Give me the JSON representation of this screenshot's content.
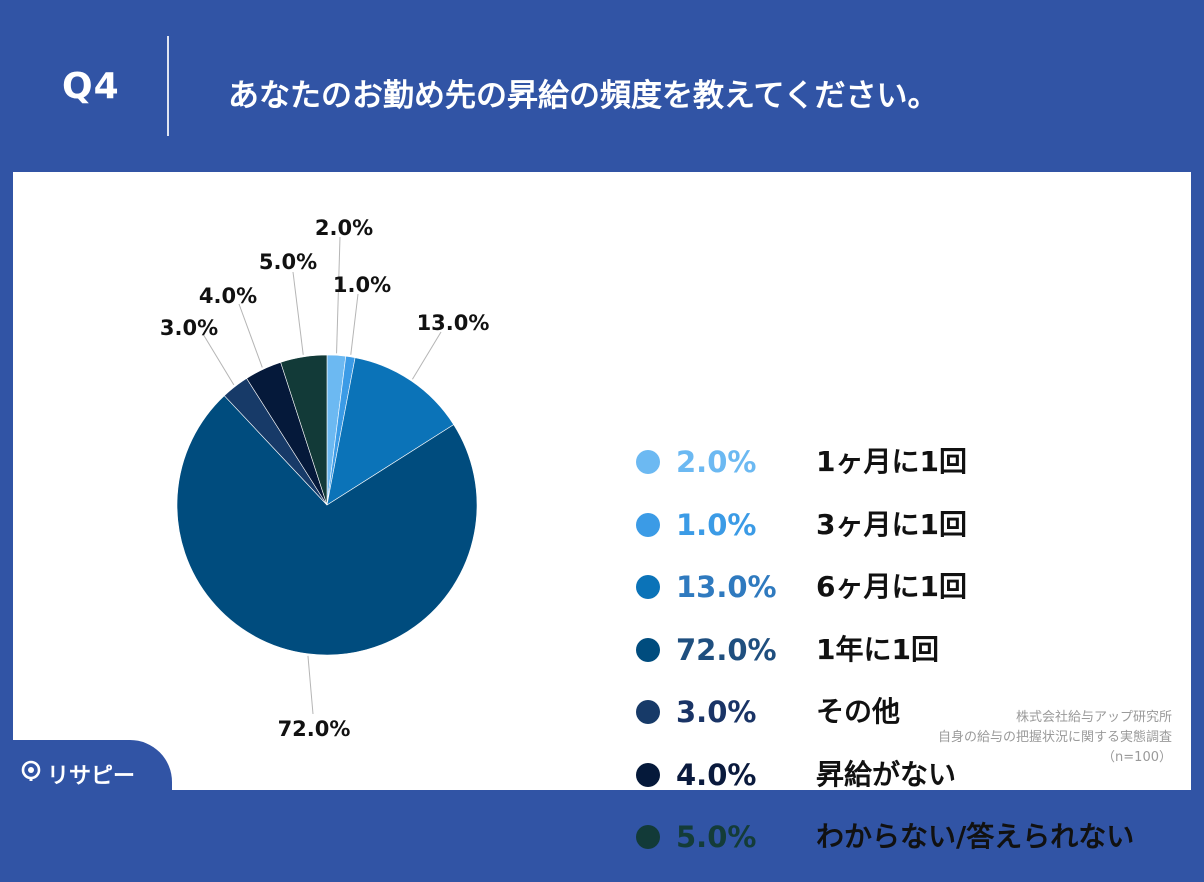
{
  "header": {
    "question_label": "Q4",
    "question_text": "あなたのお勤め先の昇給の頻度を教えてください。"
  },
  "chart_data": {
    "type": "pie",
    "title": "",
    "categories": [
      "1ヶ月に1回",
      "3ヶ月に1回",
      "6ヶ月に1回",
      "1年に1回",
      "その他",
      "昇給がない",
      "わからない/答えられない"
    ],
    "values": [
      2.0,
      1.0,
      13.0,
      72.0,
      3.0,
      4.0,
      5.0
    ],
    "labels": [
      "2.0%",
      "1.0%",
      "13.0%",
      "72.0%",
      "3.0%",
      "4.0%",
      "5.0%"
    ],
    "colors": [
      "#6cb9f2",
      "#3b9be6",
      "#0b73b8",
      "#004c7e",
      "#173a68",
      "#05193a",
      "#123a38"
    ],
    "start": "12 o'clock",
    "direction": "clockwise",
    "legend": "right"
  },
  "legend_text_colors": [
    "#6cb9f2",
    "#3b9be6",
    "#2f7abf",
    "#1f4f7f",
    "#1a3466",
    "#0a1a3d",
    "#143c38"
  ],
  "source": {
    "line1": "株式会社給与アップ研究所",
    "line2": "自身の給与の把握状況に関する実態調査",
    "line3": "（n=100）"
  },
  "logo": {
    "text": "リサピー"
  }
}
